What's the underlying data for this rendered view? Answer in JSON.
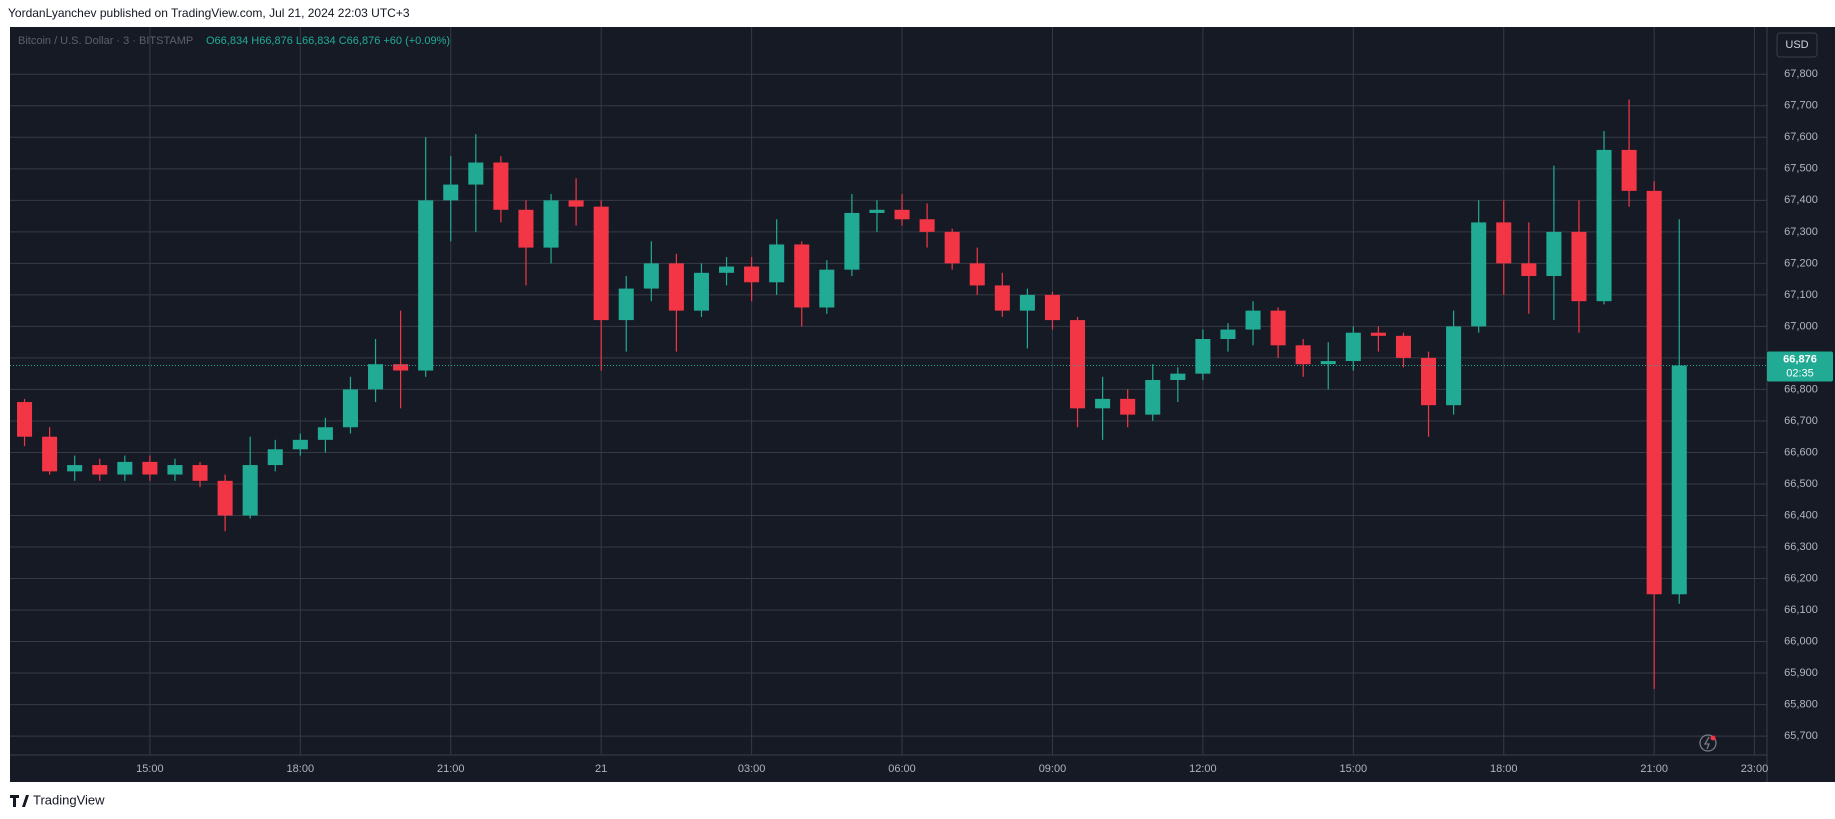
{
  "header": "YordanLyanchev published on TradingView.com, Jul 21, 2024 22:03 UTC+3",
  "footer": "TradingView",
  "chart_data": {
    "type": "candlestick",
    "symbol": "Bitcoin / U.S. Dollar · 3 · BITSTAMP",
    "ohlc_legend": "O66,834 H66,876 L66,834 C66,876 +60 (+0.09%)",
    "currency": "USD",
    "up_color": "#22ab94",
    "down_color": "#f23645",
    "grid": true,
    "categories": [
      null,
      null,
      null,
      null,
      null,
      "15:00",
      null,
      null,
      null,
      null,
      null,
      "18:00",
      null,
      null,
      null,
      null,
      null,
      "21:00",
      null,
      null,
      null,
      null,
      null,
      "21",
      null,
      null,
      null,
      null,
      null,
      "03:00",
      null,
      null,
      null,
      null,
      null,
      "06:00",
      null,
      null,
      null,
      null,
      null,
      "09:00",
      null,
      null,
      null,
      null,
      null,
      "12:00",
      null,
      null,
      null,
      null,
      null,
      "15:00",
      null,
      null,
      null,
      null,
      null,
      "18:00",
      null,
      null,
      null,
      null,
      null,
      "21:00",
      null,
      null,
      null,
      "23:00"
    ],
    "open": [
      66760,
      66650,
      66540,
      66560,
      66530,
      66570,
      66530,
      66560,
      66510,
      66400,
      66560,
      66610,
      66640,
      66680,
      66800,
      66880,
      66860,
      67400,
      67450,
      67520,
      67370,
      67250,
      67400,
      67380,
      67020,
      67120,
      67200,
      67050,
      67170,
      67190,
      67140,
      67260,
      67060,
      67180,
      67360,
      67370,
      67340,
      67300,
      67200,
      67130,
      67050,
      67100,
      67020,
      66740,
      66770,
      66720,
      66830,
      66850,
      66960,
      66990,
      67050,
      66940,
      66880,
      66890,
      66980,
      66970,
      66900,
      66750,
      67000,
      67330,
      67200,
      67160,
      67300,
      67080,
      67560,
      67430,
      66150,
      null,
      null,
      null
    ],
    "high": [
      66770,
      66680,
      66590,
      66580,
      66590,
      66590,
      66580,
      66570,
      66530,
      66650,
      66640,
      66660,
      66710,
      66840,
      66960,
      67050,
      67600,
      67540,
      67610,
      67540,
      67400,
      67420,
      67470,
      67400,
      67160,
      67270,
      67230,
      67200,
      67220,
      67220,
      67340,
      67270,
      67210,
      67420,
      67400,
      67420,
      67390,
      67310,
      67250,
      67170,
      67120,
      67110,
      67030,
      66840,
      66800,
      66880,
      66870,
      66990,
      67010,
      67080,
      67060,
      66960,
      66950,
      67000,
      67000,
      66980,
      66920,
      67050,
      67400,
      67400,
      67330,
      67510,
      67400,
      67620,
      67720,
      67460,
      67340,
      null,
      null,
      null
    ],
    "low": [
      66620,
      66530,
      66510,
      66510,
      66510,
      66510,
      66510,
      66490,
      66350,
      66390,
      66540,
      66590,
      66600,
      66660,
      66760,
      66740,
      66840,
      67270,
      67300,
      67330,
      67130,
      67200,
      67320,
      66860,
      66920,
      67080,
      66920,
      67030,
      67130,
      67080,
      67100,
      67000,
      67040,
      67160,
      67300,
      67320,
      67250,
      67180,
      67100,
      67030,
      66930,
      66990,
      66680,
      66640,
      66680,
      66700,
      66760,
      66830,
      66920,
      66940,
      66900,
      66840,
      66800,
      66860,
      66920,
      66870,
      66650,
      66720,
      66980,
      67100,
      67040,
      67020,
      66980,
      67070,
      67380,
      65850,
      66120,
      null,
      null,
      null
    ],
    "close": [
      66650,
      66540,
      66560,
      66530,
      66570,
      66530,
      66560,
      66510,
      66400,
      66560,
      66610,
      66640,
      66680,
      66800,
      66880,
      66860,
      67400,
      67450,
      67520,
      67370,
      67250,
      67400,
      67380,
      67020,
      67120,
      67200,
      67050,
      67170,
      67190,
      67140,
      67260,
      67060,
      67180,
      67360,
      67370,
      67340,
      67300,
      67200,
      67130,
      67050,
      67100,
      67020,
      66740,
      66770,
      66720,
      66830,
      66850,
      66960,
      66990,
      67050,
      66940,
      66880,
      66890,
      66980,
      66970,
      66900,
      66750,
      67000,
      67330,
      67200,
      67160,
      67300,
      67080,
      67560,
      67430,
      66150,
      66876,
      null,
      null,
      null
    ],
    "ylim": [
      65640,
      67950
    ],
    "yticks": [
      {
        "value": 65700,
        "label": "65,700"
      },
      {
        "value": 65800,
        "label": "65,800"
      },
      {
        "value": 65900,
        "label": "65,900"
      },
      {
        "value": 66000,
        "label": "66,000"
      },
      {
        "value": 66100,
        "label": "66,100"
      },
      {
        "value": 66200,
        "label": "66,200"
      },
      {
        "value": 66300,
        "label": "66,300"
      },
      {
        "value": 66400,
        "label": "66,400"
      },
      {
        "value": 66500,
        "label": "66,500"
      },
      {
        "value": 66600,
        "label": "66,600"
      },
      {
        "value": 66700,
        "label": "66,700"
      },
      {
        "value": 66800,
        "label": "66,800"
      },
      {
        "value": 66900,
        "label": "66,900"
      },
      {
        "value": 67000,
        "label": "67,000"
      },
      {
        "value": 67100,
        "label": "67,100"
      },
      {
        "value": 67200,
        "label": "67,200"
      },
      {
        "value": 67300,
        "label": "67,300"
      },
      {
        "value": 67400,
        "label": "67,400"
      },
      {
        "value": 67500,
        "label": "67,500"
      },
      {
        "value": 67600,
        "label": "67,600"
      },
      {
        "value": 67700,
        "label": "67,700"
      },
      {
        "value": 67800,
        "label": "67,800"
      }
    ],
    "last_price": {
      "value": 66876,
      "label": "66,876"
    },
    "countdown": "02:35"
  }
}
